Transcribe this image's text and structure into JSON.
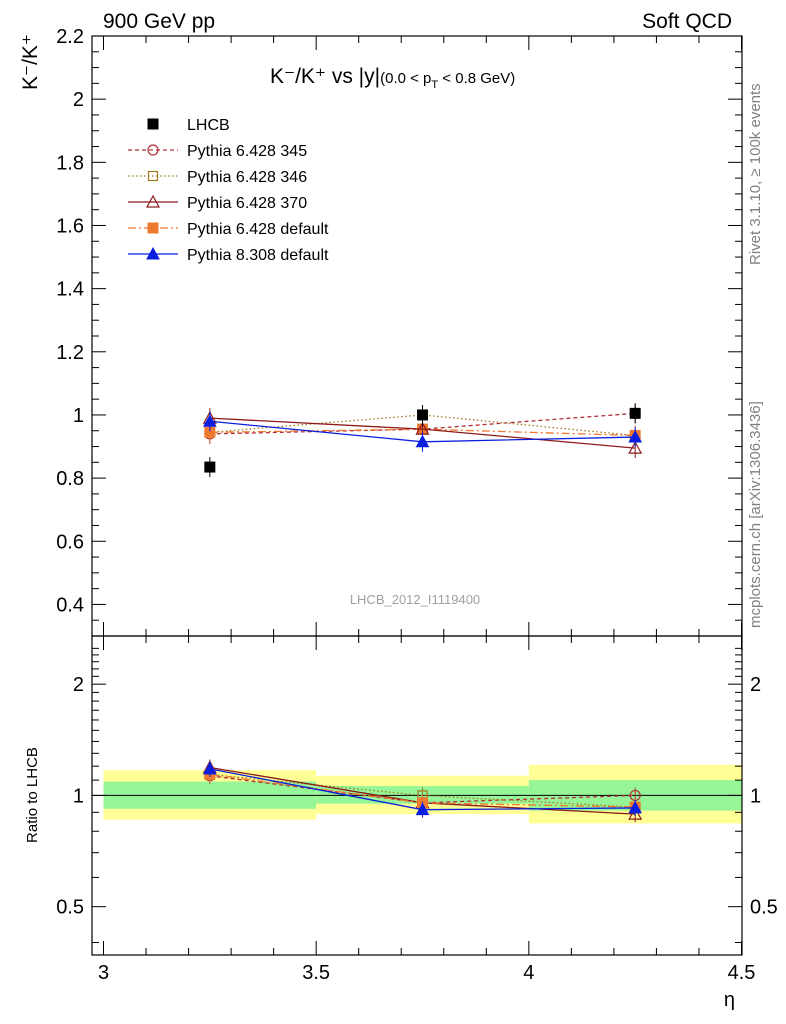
{
  "header": {
    "left": "900 GeV pp",
    "right": "Soft QCD"
  },
  "side_labels": {
    "rivet": "Rivet 3.1.10, ≥ 100k events",
    "mcplots": "mcplots.cern.ch [arXiv:1306.3436]"
  },
  "watermark": "LHCB_2012_I1119400",
  "title": {
    "main": "K⁻/K⁺ vs |y|",
    "sub": "(0.0 < p",
    "sub_idx": "T",
    "sub_end": " < 0.8 GeV)"
  },
  "ylabel_top": "K⁻/K⁺",
  "ylabel_bottom": "Ratio to LHCB",
  "xlabel": "η",
  "legend": [
    {
      "label": "LHCB",
      "color": "#000000",
      "marker": "square-filled",
      "dash": "none"
    },
    {
      "label": "Pythia 6.428 345",
      "color": "#b0303a",
      "marker": "circle-open",
      "dash": "4,3"
    },
    {
      "label": "Pythia 6.428 346",
      "color": "#a07820",
      "marker": "square-open",
      "dash": "1.5,2.5"
    },
    {
      "label": "Pythia 6.428 370",
      "color": "#8b1a1a",
      "marker": "triangle-open",
      "dash": ""
    },
    {
      "label": "Pythia 6.428 default",
      "color": "#ee7a30",
      "marker": "square-filled",
      "dash": "8,3,2,3"
    },
    {
      "label": "Pythia 8.308 default",
      "color": "#0a1ee0",
      "marker": "triangle-filled",
      "dash": ""
    }
  ],
  "chart_data": {
    "type": "line",
    "x": [
      3.25,
      3.75,
      4.25
    ],
    "xlim": [
      3.0,
      4.5
    ],
    "x_ticks": [
      "3",
      "3.5",
      "4",
      "4.5"
    ],
    "top_panel": {
      "ylim": [
        0.3,
        2.2
      ],
      "y_ticks": [
        "0.4",
        "0.6",
        "0.8",
        "1",
        "1.2",
        "1.4",
        "1.6",
        "1.8",
        "2",
        "2.2"
      ],
      "series": [
        {
          "name": "LHCB",
          "values": [
            0.835,
            1.0,
            1.005
          ]
        },
        {
          "name": "Pythia 6.428 345",
          "values": [
            0.94,
            0.955,
            1.005
          ]
        },
        {
          "name": "Pythia 6.428 346",
          "values": [
            0.945,
            1.0,
            0.935
          ]
        },
        {
          "name": "Pythia 6.428 370",
          "values": [
            0.99,
            0.955,
            0.895
          ]
        },
        {
          "name": "Pythia 6.428 default",
          "values": [
            0.945,
            0.955,
            0.935
          ]
        },
        {
          "name": "Pythia 8.308 default",
          "values": [
            0.98,
            0.915,
            0.93
          ]
        }
      ]
    },
    "ratio_panel": {
      "ylabel": "Ratio to LHCB",
      "y_ticks": [
        "0.5",
        "1",
        "2"
      ],
      "log_scale": true,
      "ylim": [
        0.37,
        2.7
      ],
      "band_edges": [
        3.0,
        3.5,
        4.0,
        4.5
      ],
      "inner_band": [
        [
          0.92,
          1.09
        ],
        [
          0.95,
          1.06
        ],
        [
          0.91,
          1.1
        ]
      ],
      "outer_band": [
        [
          0.86,
          1.17
        ],
        [
          0.89,
          1.13
        ],
        [
          0.84,
          1.21
        ]
      ],
      "series": [
        {
          "name": "Pythia 6.428 345",
          "values": [
            1.13,
            0.955,
            1.0
          ]
        },
        {
          "name": "Pythia 6.428 346",
          "values": [
            1.14,
            1.0,
            0.93
          ]
        },
        {
          "name": "Pythia 6.428 370",
          "values": [
            1.19,
            0.955,
            0.89
          ]
        },
        {
          "name": "Pythia 6.428 default",
          "values": [
            1.14,
            0.955,
            0.93
          ]
        },
        {
          "name": "Pythia 8.308 default",
          "values": [
            1.18,
            0.915,
            0.925
          ]
        }
      ]
    }
  }
}
